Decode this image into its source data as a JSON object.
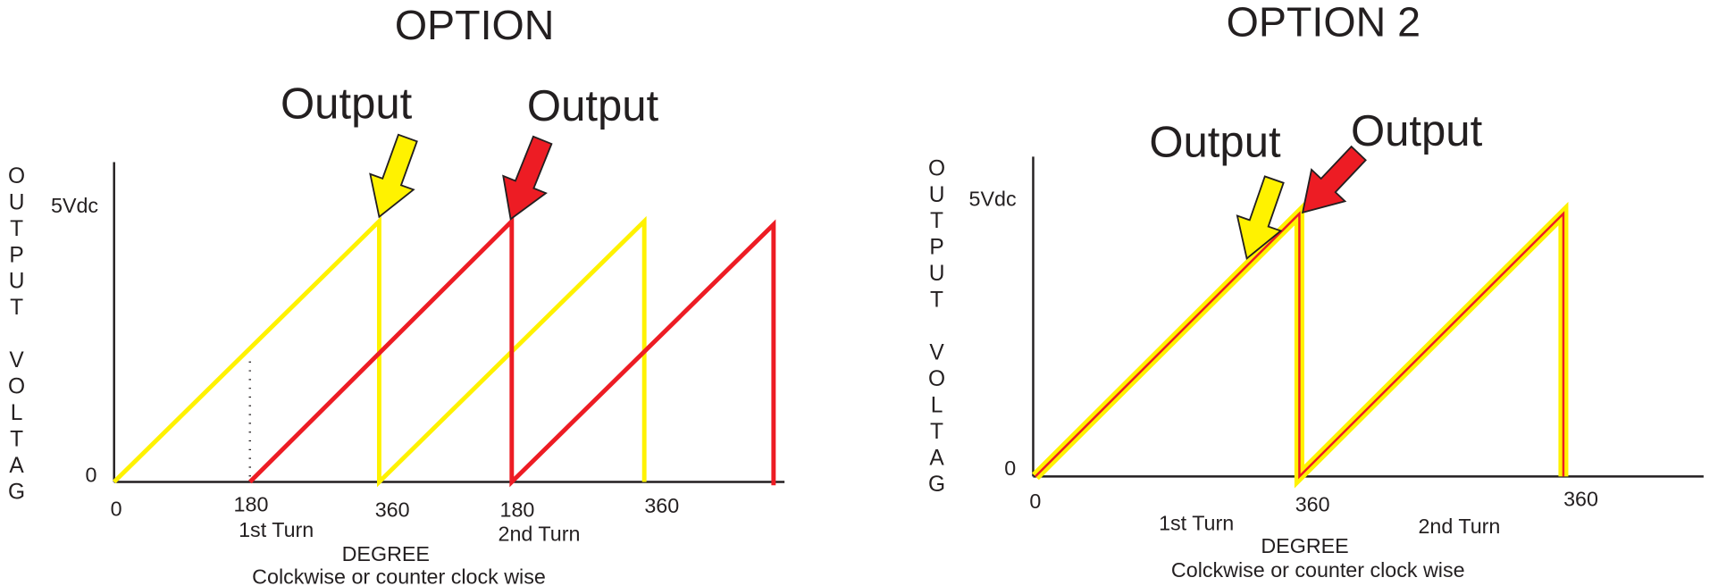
{
  "panels": [
    {
      "title": "OPTION",
      "y_axis_label": "OUTPUT VOLTAG",
      "y_top_label": "5Vdc",
      "y_zero_label": "0",
      "arrow_labels": [
        "Output",
        "Output"
      ],
      "x_tick_labels": [
        "0",
        "180",
        "360",
        "180",
        "360"
      ],
      "turn_labels": [
        "1st Turn",
        "2nd Turn"
      ],
      "x_axis_title": "DEGREE",
      "x_axis_subtitle": "Colckwise or counter clock wise"
    },
    {
      "title": "OPTION 2",
      "y_axis_label": "OUTPUT VOLTAG",
      "y_top_label": "5Vdc",
      "y_zero_label": "0",
      "arrow_labels": [
        "Output",
        "Output"
      ],
      "x_tick_labels": [
        "0",
        "360",
        "360"
      ],
      "turn_labels": [
        "1st Turn",
        "2nd Turn"
      ],
      "x_axis_title": "DEGREE",
      "x_axis_subtitle": "Colckwise or counter clock wise"
    }
  ]
}
